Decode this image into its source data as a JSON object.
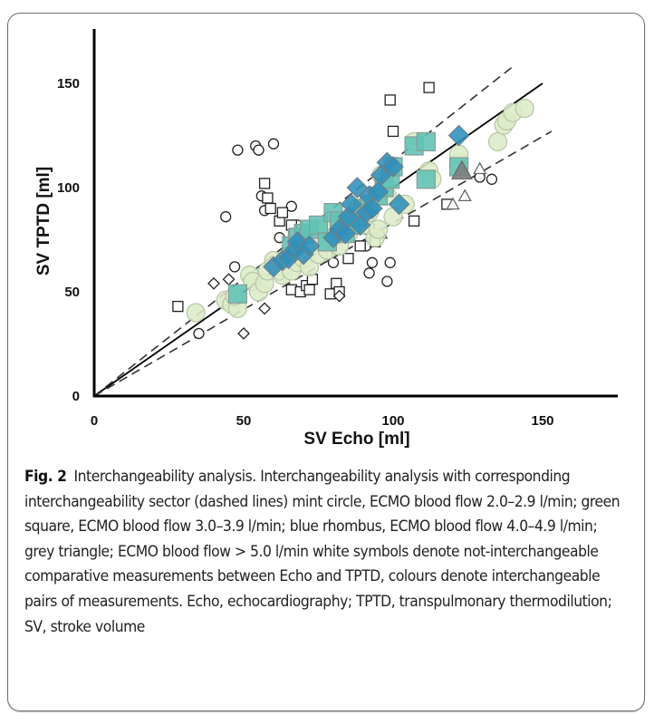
{
  "chart_data": {
    "type": "scatter",
    "title": "",
    "xlabel": "SV Echo [ml]",
    "ylabel": "SV TPTD [ml]",
    "xlim": [
      0,
      175
    ],
    "ylim": [
      0,
      175
    ],
    "x_ticks": [
      "0",
      "50",
      "100",
      "150"
    ],
    "y_ticks": [
      "0",
      "50",
      "100",
      "150"
    ],
    "x_tick_values": [
      0,
      50,
      100,
      150
    ],
    "y_tick_values": [
      0,
      50,
      100,
      150
    ],
    "grid": false,
    "legend": "none (described in caption)",
    "lines": [
      {
        "name": "identity line",
        "style": "solid",
        "color": "#000000",
        "x": [
          0,
          150
        ],
        "y": [
          0,
          150
        ]
      },
      {
        "name": "upper interchangeability limit",
        "style": "dashed",
        "color": "#333333",
        "x": [
          0,
          140
        ],
        "y": [
          0,
          158
        ]
      },
      {
        "name": "lower interchangeability limit",
        "style": "dashed",
        "color": "#333333",
        "x": [
          0,
          153
        ],
        "y": [
          0,
          127
        ]
      }
    ],
    "series": [
      {
        "name": "ECMO blood flow 2.0–2.9 l/min (interchangeable)",
        "marker": "circle",
        "fill": "#dcecc8",
        "stroke": "#b5c6a5",
        "points": [
          [
            34,
            40
          ],
          [
            44,
            46
          ],
          [
            46,
            44
          ],
          [
            48,
            42
          ],
          [
            47,
            48
          ],
          [
            52,
            58
          ],
          [
            53,
            55
          ],
          [
            55,
            50
          ],
          [
            57,
            54
          ],
          [
            58,
            60
          ],
          [
            60,
            65
          ],
          [
            62,
            62
          ],
          [
            63,
            58
          ],
          [
            64,
            66
          ],
          [
            66,
            60
          ],
          [
            67,
            70
          ],
          [
            68,
            64
          ],
          [
            70,
            66
          ],
          [
            72,
            62
          ],
          [
            73,
            72
          ],
          [
            75,
            68
          ],
          [
            76,
            74
          ],
          [
            77,
            80
          ],
          [
            78,
            70
          ],
          [
            80,
            76
          ],
          [
            82,
            72
          ],
          [
            83,
            80
          ],
          [
            85,
            78
          ],
          [
            86,
            84
          ],
          [
            88,
            90
          ],
          [
            90,
            82
          ],
          [
            92,
            88
          ],
          [
            94,
            76
          ],
          [
            95,
            80
          ],
          [
            96,
            106
          ],
          [
            98,
            96
          ],
          [
            100,
            86
          ],
          [
            104,
            92
          ],
          [
            107,
            122
          ],
          [
            112,
            108
          ],
          [
            113,
            104
          ],
          [
            122,
            112
          ],
          [
            122,
            116
          ],
          [
            135,
            122
          ],
          [
            137,
            130
          ],
          [
            138,
            132
          ],
          [
            140,
            136
          ],
          [
            144,
            138
          ]
        ]
      },
      {
        "name": "ECMO blood flow 3.0–3.9 l/min (interchangeable)",
        "marker": "square",
        "fill": "#5ec3b5",
        "stroke": "#8a9a96",
        "points": [
          [
            48,
            49
          ],
          [
            66,
            72
          ],
          [
            68,
            76
          ],
          [
            70,
            78
          ],
          [
            72,
            80
          ],
          [
            75,
            82
          ],
          [
            78,
            74
          ],
          [
            80,
            88
          ],
          [
            82,
            84
          ],
          [
            84,
            78
          ],
          [
            86,
            82
          ],
          [
            88,
            86
          ],
          [
            90,
            90
          ],
          [
            92,
            92
          ],
          [
            95,
            96
          ],
          [
            97,
            100
          ],
          [
            99,
            104
          ],
          [
            100,
            110
          ],
          [
            107,
            120
          ],
          [
            111,
            122
          ],
          [
            111,
            104
          ],
          [
            122,
            110
          ]
        ]
      },
      {
        "name": "ECMO blood flow 4.0–4.9 l/min (interchangeable)",
        "marker": "diamond",
        "fill": "#2f8fbc",
        "stroke": "#6a7f8c",
        "points": [
          [
            60,
            62
          ],
          [
            63,
            65
          ],
          [
            65,
            66
          ],
          [
            67,
            70
          ],
          [
            68,
            74
          ],
          [
            70,
            68
          ],
          [
            72,
            72
          ],
          [
            80,
            76
          ],
          [
            82,
            80
          ],
          [
            84,
            78
          ],
          [
            85,
            86
          ],
          [
            86,
            92
          ],
          [
            88,
            100
          ],
          [
            89,
            82
          ],
          [
            91,
            88
          ],
          [
            92,
            96
          ],
          [
            93,
            90
          ],
          [
            95,
            98
          ],
          [
            96,
            106
          ],
          [
            98,
            112
          ],
          [
            100,
            110
          ],
          [
            102,
            92
          ],
          [
            122,
            125
          ]
        ]
      },
      {
        "name": "ECMO blood flow > 5.0 l/min (interchangeable)",
        "marker": "triangle",
        "fill": "#7c7c7c",
        "stroke": "#6a6a6a",
        "points": [
          [
            123,
            108
          ]
        ]
      },
      {
        "name": "Not interchangeable (2.0–2.9 l/min)",
        "marker": "circle",
        "fill": "#ffffff",
        "stroke": "#222222",
        "points": [
          [
            35,
            30
          ],
          [
            44,
            86
          ],
          [
            47,
            62
          ],
          [
            48,
            118
          ],
          [
            54,
            120
          ],
          [
            55,
            118
          ],
          [
            57,
            102
          ],
          [
            56,
            96
          ],
          [
            57,
            89
          ],
          [
            60,
            121
          ],
          [
            62,
            76
          ],
          [
            62,
            58
          ],
          [
            66,
            91
          ],
          [
            68,
            82
          ],
          [
            78,
            68
          ],
          [
            80,
            64
          ],
          [
            82,
            76
          ],
          [
            91,
            72
          ],
          [
            92,
            59
          ],
          [
            93,
            64
          ],
          [
            99,
            64
          ],
          [
            98,
            55
          ],
          [
            129,
            105
          ],
          [
            133,
            104
          ]
        ]
      },
      {
        "name": "Not interchangeable (3.0–3.9 l/min)",
        "marker": "square",
        "fill": "#ffffff",
        "stroke": "#222222",
        "points": [
          [
            28,
            43
          ],
          [
            57,
            102
          ],
          [
            58,
            95
          ],
          [
            59,
            90
          ],
          [
            62,
            84
          ],
          [
            63,
            88
          ],
          [
            66,
            82
          ],
          [
            67,
            78
          ],
          [
            66,
            51
          ],
          [
            69,
            50
          ],
          [
            71,
            53
          ],
          [
            72,
            51
          ],
          [
            73,
            56
          ],
          [
            79,
            49
          ],
          [
            81,
            54
          ],
          [
            82,
            50
          ],
          [
            85,
            66
          ],
          [
            89,
            72
          ],
          [
            92,
            80
          ],
          [
            94,
            74
          ],
          [
            99,
            142
          ],
          [
            100,
            127
          ],
          [
            112,
            148
          ],
          [
            107,
            84
          ],
          [
            118,
            92
          ]
        ]
      },
      {
        "name": "Not interchangeable (4.0–4.9 l/min)",
        "marker": "diamond",
        "fill": "#ffffff",
        "stroke": "#222222",
        "points": [
          [
            40,
            54
          ],
          [
            45,
            56
          ],
          [
            50,
            30
          ],
          [
            57,
            42
          ],
          [
            82,
            48
          ]
        ]
      },
      {
        "name": "Not interchangeable (> 5.0 l/min)",
        "marker": "triangle",
        "fill": "#ffffff",
        "stroke": "#666666",
        "points": [
          [
            96,
            78
          ],
          [
            120,
            92
          ],
          [
            124,
            96
          ],
          [
            129,
            109
          ]
        ]
      }
    ]
  },
  "caption": {
    "figure_label": "Fig. 2",
    "text": "Interchangeability analysis. Interchangeability analysis with corresponding interchangeability sector (dashed lines) mint circle, ECMO blood flow 2.0–2.9 l/min; green square, ECMO blood flow 3.0–3.9 l/min; blue rhombus, ECMO blood flow 4.0–4.9 l/min; grey triangle; ECMO blood flow > 5.0 l/min white symbols denote not-interchangeable comparative measurements between Echo and TPTD, colours denote interchangeable pairs of measurements. Echo, echocardiography; TPTD, transpulmonary thermodilution; SV, stroke volume"
  }
}
